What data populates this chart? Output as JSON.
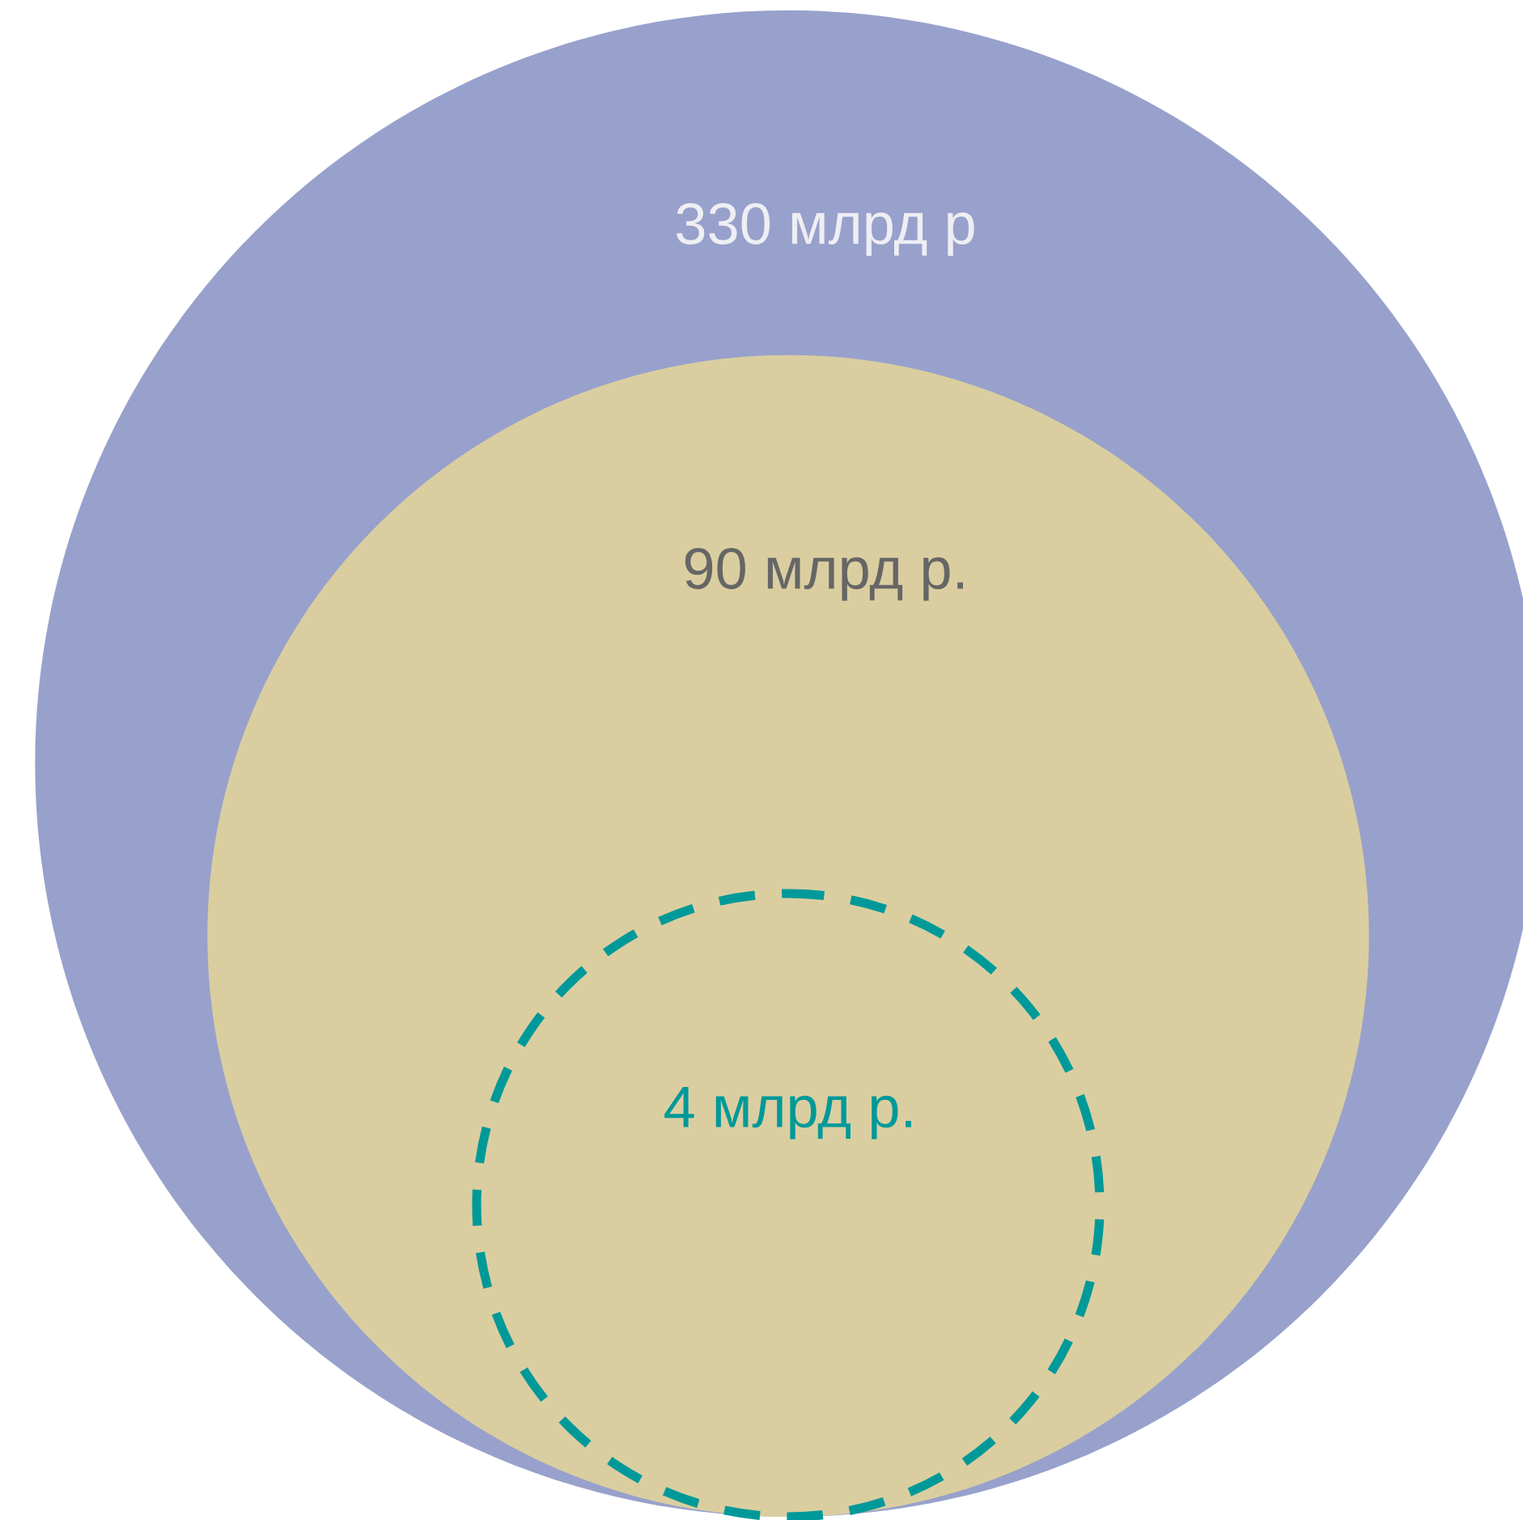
{
  "chart_data": {
    "type": "other",
    "values": [
      330,
      90,
      4
    ],
    "value_labels": [
      "330 млрд р",
      "90 млрд р.",
      "4 млрд р."
    ],
    "colors": [
      "#98a1cb",
      "#dacea0",
      "#009999"
    ]
  }
}
